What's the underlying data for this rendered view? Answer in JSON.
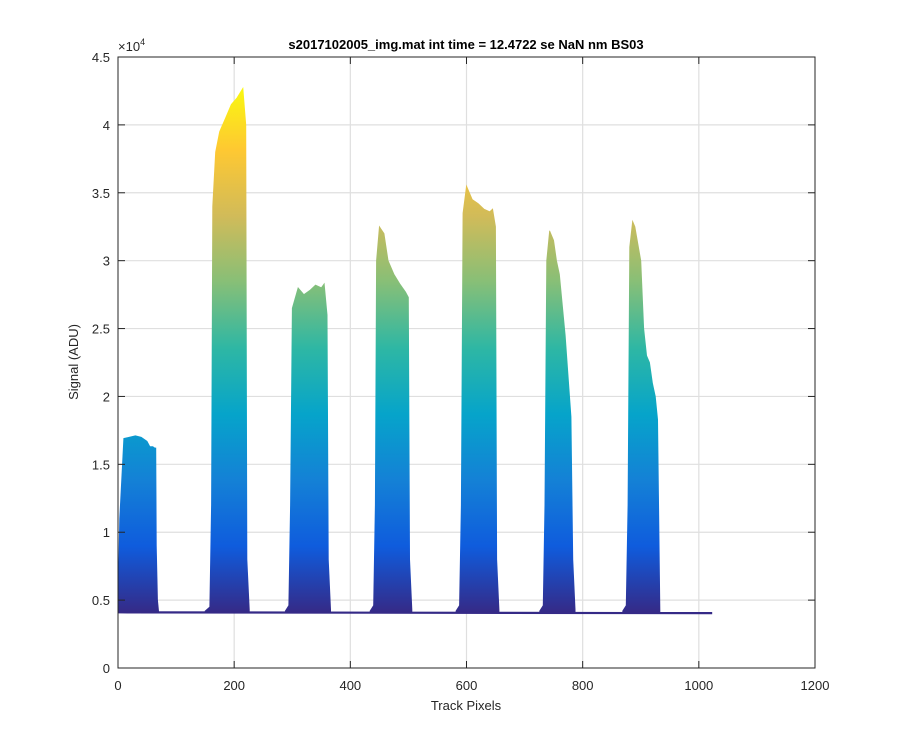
{
  "chart_data": {
    "type": "area",
    "title": "s2017102005_img.mat int time = 12.4722 se  NaN nm BS03",
    "xlabel": "Track Pixels",
    "ylabel": "Signal (ADU)",
    "xlim": [
      0,
      1200
    ],
    "ylim": [
      0,
      45000
    ],
    "xticks": [
      0,
      200,
      400,
      600,
      800,
      1000,
      1200
    ],
    "xtick_labels": [
      "0",
      "200",
      "400",
      "600",
      "800",
      "1000",
      "1200"
    ],
    "yticks": [
      0,
      5000,
      10000,
      15000,
      20000,
      25000,
      30000,
      35000,
      40000,
      45000
    ],
    "ytick_labels": [
      "0",
      "0.5",
      "1",
      "1.5",
      "2",
      "2.5",
      "3",
      "3.5",
      "4",
      "4.5"
    ],
    "y_exponent_base": "×10",
    "y_exponent": "4",
    "grid": true,
    "baseline": 4100,
    "x_end": 1023,
    "colormap": [
      "#352a87",
      "#0f5cdd",
      "#1481d6",
      "#06a4ca",
      "#2eb7a4",
      "#87bf77",
      "#d1bb59",
      "#fec832",
      "#f9fb0e"
    ],
    "series": [
      {
        "x": [
          0,
          3,
          10,
          20,
          30,
          40,
          50,
          55,
          60,
          63,
          65,
          66,
          68,
          70
        ],
        "y": [
          4100,
          11000,
          16900,
          17000,
          17100,
          17000,
          16700,
          16300,
          16300,
          16200,
          16200,
          9000,
          5000,
          4100
        ]
      },
      {
        "x": [
          150,
          158,
          161,
          163,
          168,
          175,
          185,
          195,
          205,
          215,
          220,
          222,
          226
        ],
        "y": [
          4200,
          4500,
          12000,
          34000,
          38000,
          39500,
          40500,
          41500,
          42000,
          42700,
          40000,
          8000,
          4300
        ]
      },
      {
        "x": [
          288,
          294,
          297,
          300,
          310,
          320,
          330,
          340,
          350,
          355,
          360,
          362,
          366
        ],
        "y": [
          4200,
          4600,
          12000,
          26500,
          28000,
          27500,
          27800,
          28200,
          28000,
          28300,
          26000,
          8000,
          4300
        ]
      },
      {
        "x": [
          434,
          440,
          443,
          445,
          450,
          458,
          465,
          475,
          485,
          495,
          500,
          502,
          506
        ],
        "y": [
          4200,
          4600,
          12000,
          30000,
          32500,
          32000,
          30000,
          29000,
          28300,
          27700,
          27300,
          8000,
          4300
        ]
      },
      {
        "x": [
          582,
          588,
          591,
          594,
          600,
          610,
          620,
          630,
          640,
          645,
          650,
          652,
          656
        ],
        "y": [
          4200,
          4600,
          12000,
          33500,
          35500,
          34500,
          34200,
          33800,
          33600,
          33800,
          32500,
          8000,
          4300
        ]
      },
      {
        "x": [
          726,
          732,
          735,
          738,
          743,
          750,
          755,
          760,
          770,
          775,
          780,
          783,
          787
        ],
        "y": [
          4200,
          4600,
          12000,
          30000,
          32200,
          31500,
          30000,
          29000,
          24500,
          21500,
          18500,
          8000,
          4300
        ]
      },
      {
        "x": [
          869,
          875,
          878,
          881,
          886,
          890,
          900,
          905,
          910,
          915,
          920,
          925,
          929,
          933
        ],
        "y": [
          4200,
          4600,
          12000,
          31000,
          32900,
          32500,
          30000,
          25000,
          23000,
          22500,
          21000,
          20000,
          18300,
          4300
        ]
      }
    ]
  }
}
